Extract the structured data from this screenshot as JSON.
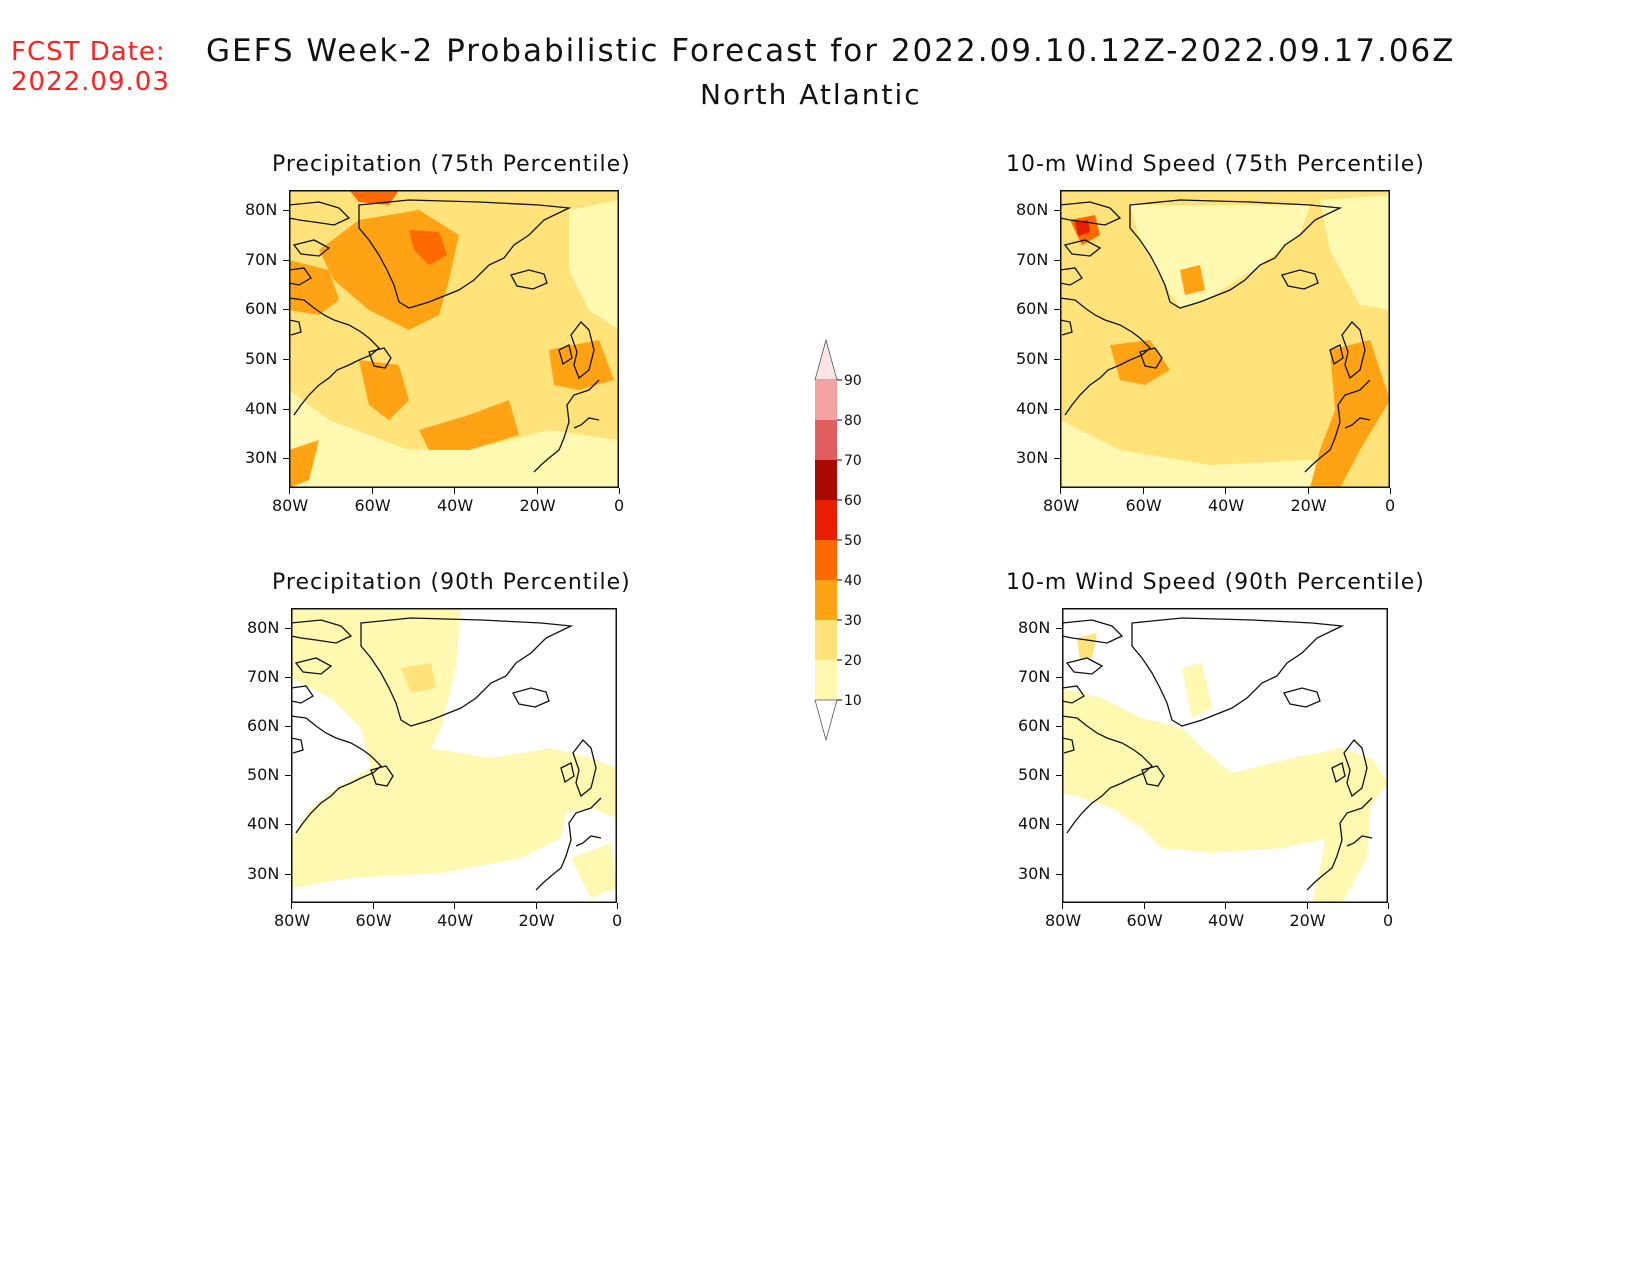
{
  "header": {
    "fcst_label": "FCST Date:",
    "fcst_date": "2022.09.03",
    "title": "GEFS Week-2 Probabilistic Forecast for 2022.09.10.12Z-2022.09.17.06Z",
    "subtitle": "North Atlantic"
  },
  "panels": [
    {
      "title": "Precipitation (75th Percentile)"
    },
    {
      "title": "10-m Wind Speed (75th Percentile)"
    },
    {
      "title": "Precipitation (90th Percentile)"
    },
    {
      "title": "10-m Wind Speed (90th Percentile)"
    }
  ],
  "axes": {
    "lat_labels": [
      "80N",
      "70N",
      "60N",
      "50N",
      "40N",
      "30N"
    ],
    "lon_labels": [
      "80W",
      "60W",
      "40W",
      "20W",
      "0"
    ]
  },
  "colorbar": {
    "levels": [
      "10",
      "20",
      "30",
      "40",
      "50",
      "60",
      "70",
      "80",
      "90"
    ],
    "colors": [
      "#fff8b0",
      "#ffe27a",
      "#ffa314",
      "#ff6a00",
      "#e81e00",
      "#a90a00",
      "#e05e5e",
      "#f2a2a2",
      "#fde4e4"
    ]
  },
  "palette": {
    "c1": "#fff8b0",
    "c2": "#ffe27a",
    "c3": "#ffa314",
    "c4": "#ff6a00",
    "c5": "#e81e00"
  }
}
